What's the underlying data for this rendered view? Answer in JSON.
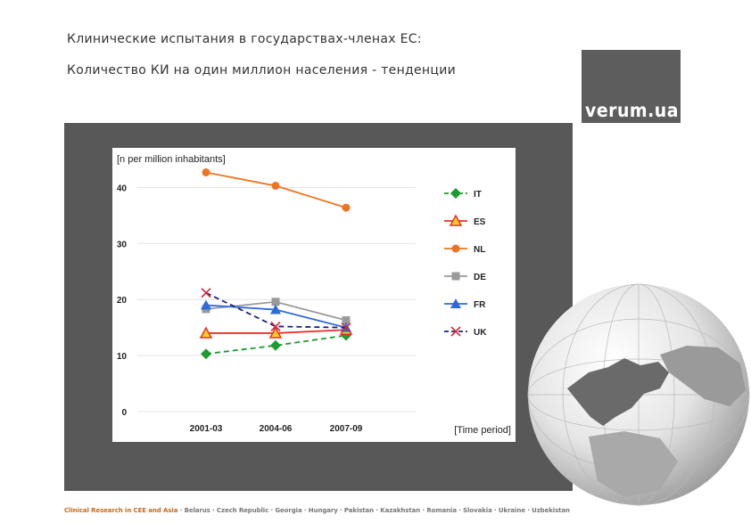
{
  "slide": {
    "title_line1": "Клинические испытания в государствах-членах ЕС:",
    "title_line2": "Количество КИ на один миллион населения - тенденции"
  },
  "logo": {
    "text": "verum.ua"
  },
  "footer": {
    "brand": "Clinical Research in CEE and Asia",
    "countries": " · Belarus · Czech Republic · Georgia · Hungary · Pakistan · Kazakhstan · Romania · Slovakia · Ukraine · Uzbekistan"
  },
  "colors": {
    "panel": "#585858",
    "logo_bg": "#5d5d5d",
    "brand": "#c56a1f"
  },
  "chart_data": {
    "type": "line",
    "ylabel": "[n per million inhabitants]",
    "xlabel": "[Time period]",
    "categories": [
      "2001-03",
      "2004-06",
      "2007-09"
    ],
    "yticks": [
      0,
      10,
      20,
      30,
      40
    ],
    "ylim": [
      0,
      45
    ],
    "grid": "horizontal",
    "legend_position": "right",
    "series": [
      {
        "name": "IT",
        "values": [
          10.3,
          11.8,
          13.6
        ],
        "color": "#1e9a2e",
        "marker": "diamond",
        "dash": true
      },
      {
        "name": "ES",
        "values": [
          14.0,
          14.0,
          14.6
        ],
        "color": "#e8302a",
        "marker": "triangle-open",
        "dash": false
      },
      {
        "name": "NL",
        "values": [
          42.7,
          40.3,
          36.4
        ],
        "color": "#ef7421",
        "marker": "circle",
        "dash": false
      },
      {
        "name": "DE",
        "values": [
          18.3,
          19.6,
          16.3
        ],
        "color": "#9a9a9a",
        "marker": "square",
        "dash": false
      },
      {
        "name": "FR",
        "values": [
          19.0,
          18.2,
          15.0
        ],
        "color": "#2f6bd8",
        "marker": "triangle",
        "dash": false
      },
      {
        "name": "UK",
        "values": [
          21.2,
          15.2,
          15.0
        ],
        "color": "#1a237e",
        "marker": "x",
        "dash": true
      }
    ]
  }
}
